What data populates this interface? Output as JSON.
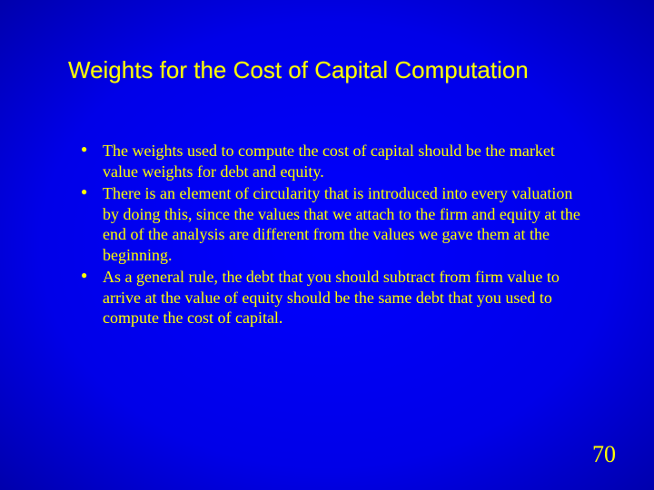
{
  "slide": {
    "title": "Weights for the Cost of Capital Computation",
    "bullets": [
      "The weights used to compute the cost of capital should be the market value weights for debt and equity.",
      "There is an element of circularity that is introduced into every valuation by doing this, since the values that we attach to the firm and equity at the end of the analysis are different from the values we gave them at the beginning.",
      "As a general rule, the debt that you should subtract from firm value to arrive at the value of equity should be the same debt that you used to compute the cost of capital."
    ],
    "pageNumber": "70",
    "colors": {
      "text": "#ffff00",
      "backgroundCenter": "#0000ff",
      "backgroundEdge": "#000020"
    },
    "typography": {
      "titleFont": "Arial",
      "titleSize": 26,
      "bodyFont": "Times New Roman",
      "bodySize": 18,
      "pageNumberSize": 26
    }
  }
}
